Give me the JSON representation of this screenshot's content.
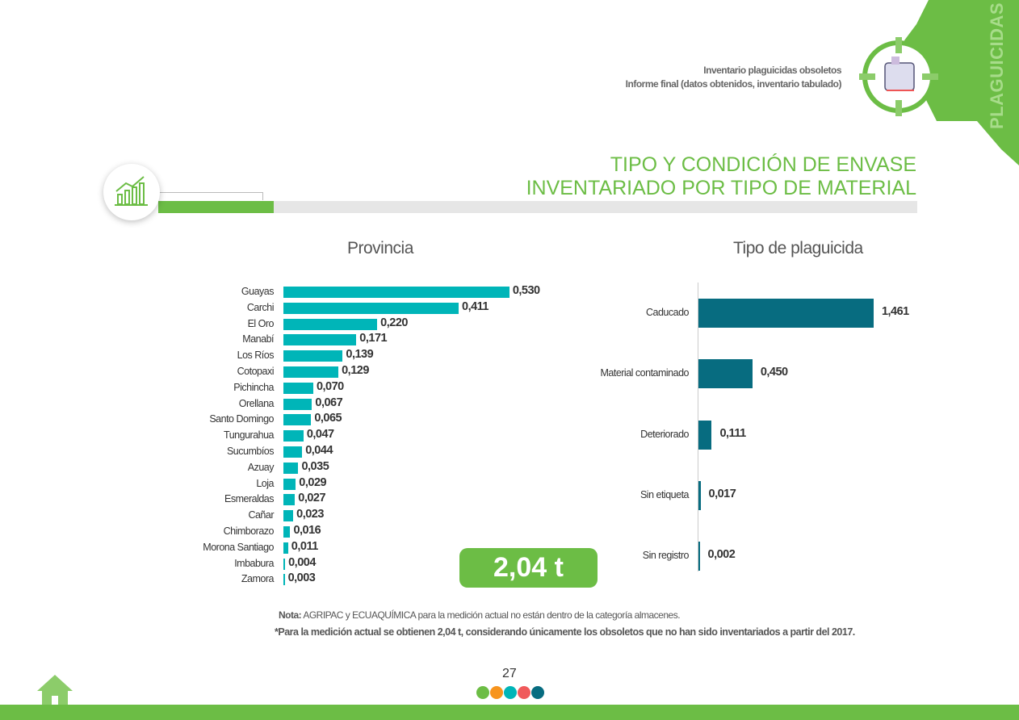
{
  "header": {
    "line1": "Inventario plaguicidas obsoletos",
    "line2": "Informe final (datos obtenidos, inventario tabulado)",
    "section_tab": "PLAGUICIDAS"
  },
  "title": {
    "line1": "TIPO Y CONDICIÓN DE ENVASE",
    "line2": "INVENTARIADO POR TIPO DE MATERIAL"
  },
  "colors": {
    "green": "#6cbd45",
    "teal": "#00b5b8",
    "dark_teal": "#076c80"
  },
  "total": "2,04 t",
  "notes": {
    "label": "Nota:",
    "text": " AGRIPAC y ECUAQUÍMICA  para la medición actual no están dentro de la categoría almacenes.",
    "footnote": "*Para la medición actual se obtienen 2,04 t, considerando únicamente los obsoletos que no han sido inventariados a partir del 2017."
  },
  "page_number": "27",
  "chart_data": [
    {
      "type": "bar",
      "orientation": "horizontal",
      "title": "Provincia",
      "color": "#00b5b8",
      "categories": [
        "Guayas",
        "Carchi",
        "El Oro",
        "Manabí",
        "Los Ríos",
        "Cotopaxi",
        "Pichincha",
        "Orellana",
        "Santo Domingo",
        "Tungurahua",
        "Sucumbíos",
        "Azuay",
        "Loja",
        "Esmeraldas",
        "Cañar",
        "Chimborazo",
        "Morona Santiago",
        "Imbabura",
        "Zamora"
      ],
      "values": [
        0.53,
        0.411,
        0.22,
        0.171,
        0.139,
        0.129,
        0.07,
        0.067,
        0.065,
        0.047,
        0.044,
        0.035,
        0.029,
        0.027,
        0.023,
        0.016,
        0.011,
        0.004,
        0.003
      ],
      "labels": [
        "0,530",
        "0,411",
        "0,220",
        "0,171",
        "0,139",
        "0,129",
        "0,070",
        "0,067",
        "0,065",
        "0,047",
        "0,044",
        "0,035",
        "0,029",
        "0,027",
        "0,023",
        "0,016",
        "0,011",
        "0,004",
        "0,003"
      ]
    },
    {
      "type": "bar",
      "orientation": "horizontal",
      "title": "Tipo de plaguicida",
      "color": "#076c80",
      "categories": [
        "Caducado",
        "Material contaminado",
        "Deteriorado",
        "Sin etiqueta",
        "Sin registro"
      ],
      "values": [
        1.461,
        0.45,
        0.111,
        0.017,
        0.002
      ],
      "labels": [
        "1,461",
        "0,450",
        "0,111",
        "0,017",
        "0,002"
      ]
    }
  ]
}
